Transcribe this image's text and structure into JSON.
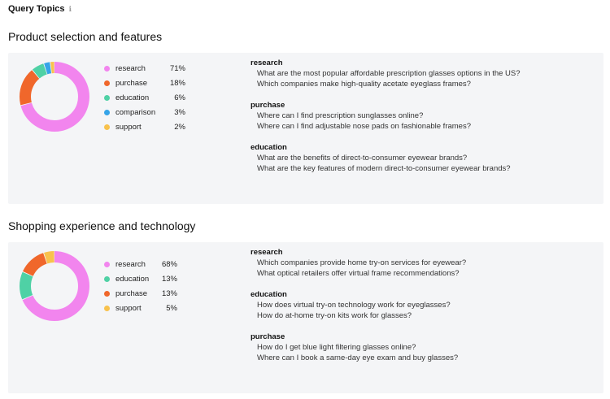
{
  "header": {
    "title": "Query Topics",
    "info_icon": "info-icon"
  },
  "sections": [
    {
      "title": "Product selection and features",
      "topics": [
        {
          "label": "research",
          "pct": "71%",
          "value": 71,
          "color": "#f285ee"
        },
        {
          "label": "purchase",
          "pct": "18%",
          "value": 18,
          "color": "#f0672b"
        },
        {
          "label": "education",
          "pct": "6%",
          "value": 6,
          "color": "#4fd1a5"
        },
        {
          "label": "comparison",
          "pct": "3%",
          "value": 3,
          "color": "#35a4e8"
        },
        {
          "label": "support",
          "pct": "2%",
          "value": 2,
          "color": "#f8c24d"
        }
      ],
      "groups": [
        {
          "title": "research",
          "queries": [
            "What are the most popular affordable prescription glasses options in the US?",
            "Which companies make high-quality acetate eyeglass frames?"
          ]
        },
        {
          "title": "purchase",
          "queries": [
            "Where can I find prescription sunglasses online?",
            "Where can I find adjustable nose pads on fashionable frames?"
          ]
        },
        {
          "title": "education",
          "queries": [
            "What are the benefits of direct-to-consumer eyewear brands?",
            "What are the key features of modern direct-to-consumer eyewear brands?"
          ]
        }
      ]
    },
    {
      "title": "Shopping experience and technology",
      "topics": [
        {
          "label": "research",
          "pct": "68%",
          "value": 68,
          "color": "#f285ee"
        },
        {
          "label": "education",
          "pct": "13%",
          "value": 13,
          "color": "#4fd1a5"
        },
        {
          "label": "purchase",
          "pct": "13%",
          "value": 13,
          "color": "#f0672b"
        },
        {
          "label": "support",
          "pct": "5%",
          "value": 5,
          "color": "#f8c24d"
        }
      ],
      "groups": [
        {
          "title": "research",
          "queries": [
            "Which companies provide home try-on services for eyewear?",
            "What optical retailers offer virtual frame recommendations?"
          ]
        },
        {
          "title": "education",
          "queries": [
            "How does virtual try-on technology work for eyeglasses?",
            "How do at-home try-on kits work for glasses?"
          ]
        },
        {
          "title": "purchase",
          "queries": [
            "How do I get blue light filtering glasses online?",
            "Where can I book a same-day eye exam and buy glasses?"
          ]
        }
      ]
    }
  ]
}
